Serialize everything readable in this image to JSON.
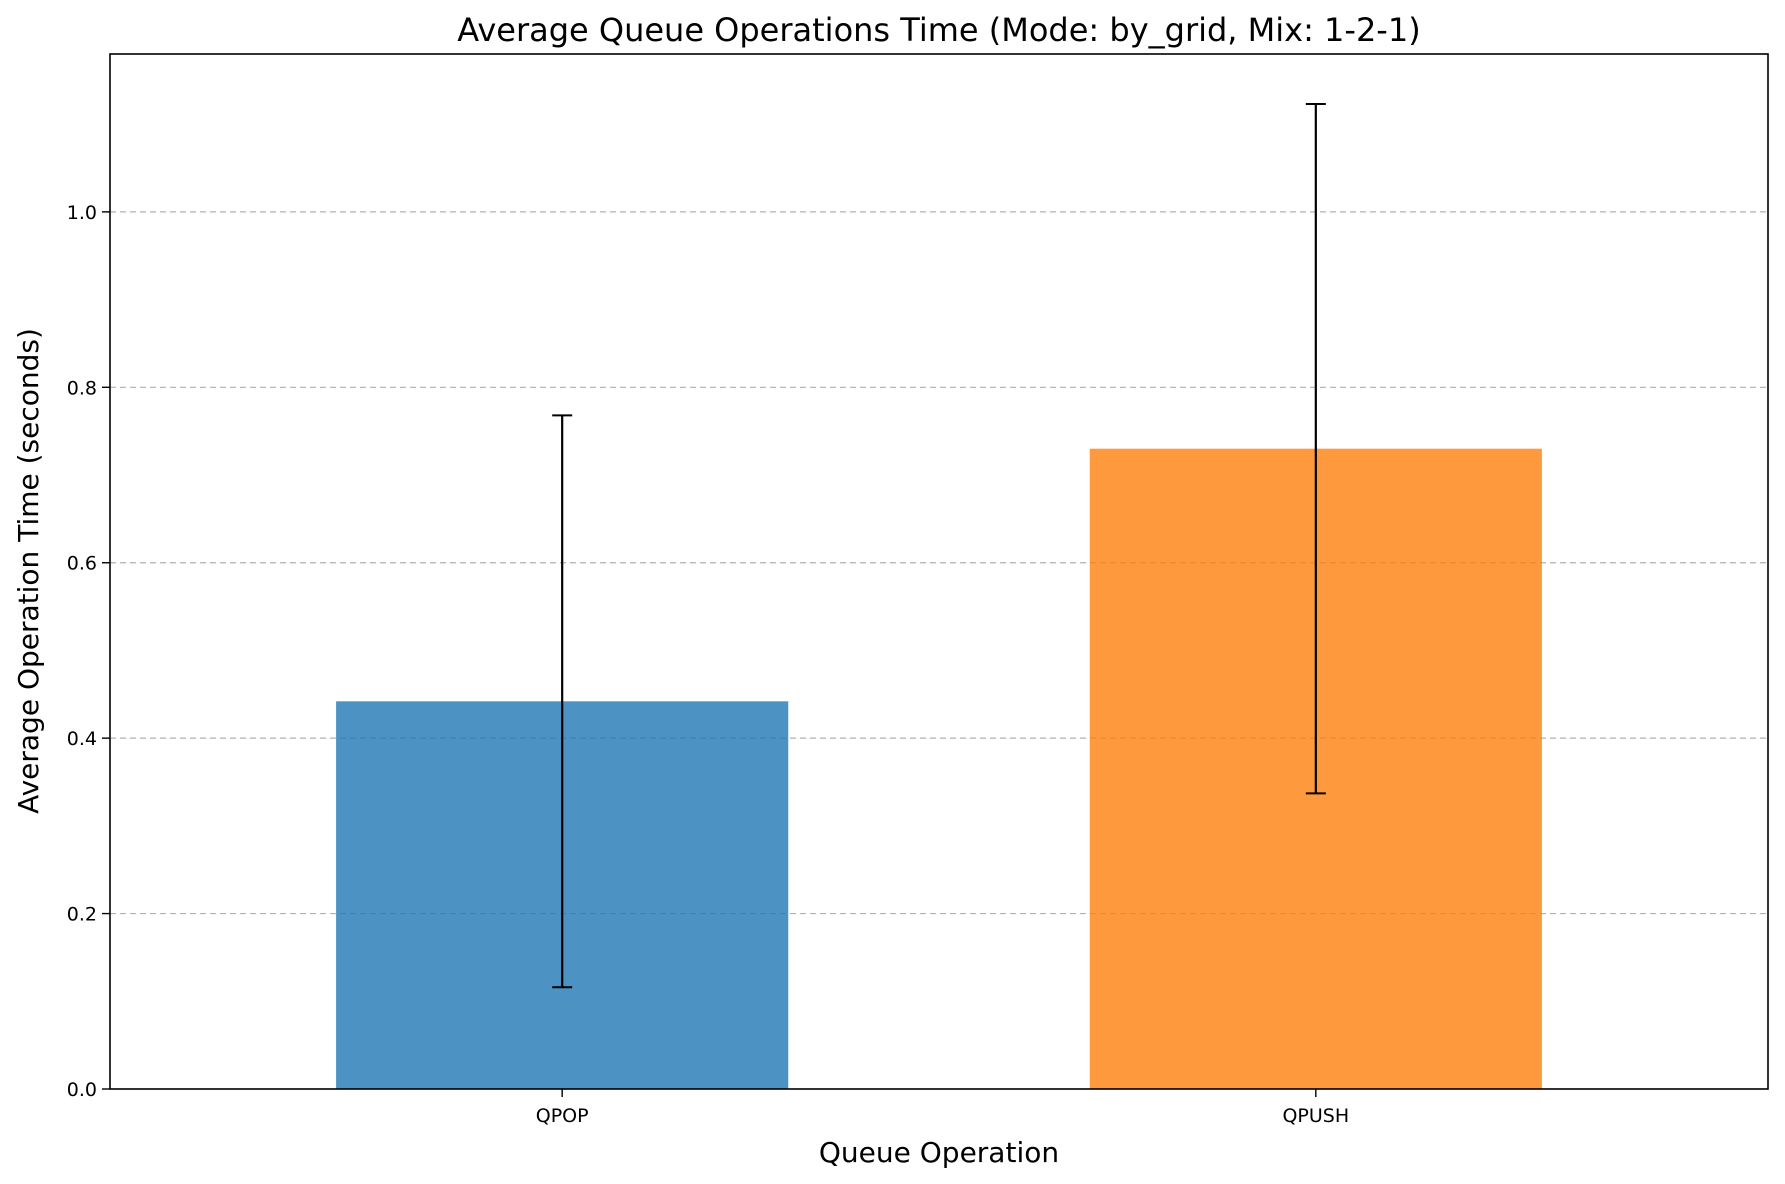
{
  "chart_data": {
    "type": "bar",
    "title": "Average Queue Operations Time (Mode: by_grid, Mix: 1-2-1)",
    "xlabel": "Queue Operation",
    "ylabel": "Average Operation Time (seconds)",
    "categories": [
      "QPOP",
      "QPUSH"
    ],
    "values": [
      0.442,
      0.73
    ],
    "error_low": [
      0.116,
      0.337
    ],
    "error_high": [
      0.768,
      1.123
    ],
    "colors": [
      "#1f77b4",
      "#ff7f0e"
    ],
    "ylim": [
      0,
      1.18
    ],
    "yticks": [
      0.0,
      0.2,
      0.4,
      0.6,
      0.8,
      1.0
    ],
    "ytick_labels": [
      "0.0",
      "0.2",
      "0.4",
      "0.6",
      "0.8",
      "1.0"
    ],
    "grid": "y-dashed",
    "legend": "none"
  }
}
